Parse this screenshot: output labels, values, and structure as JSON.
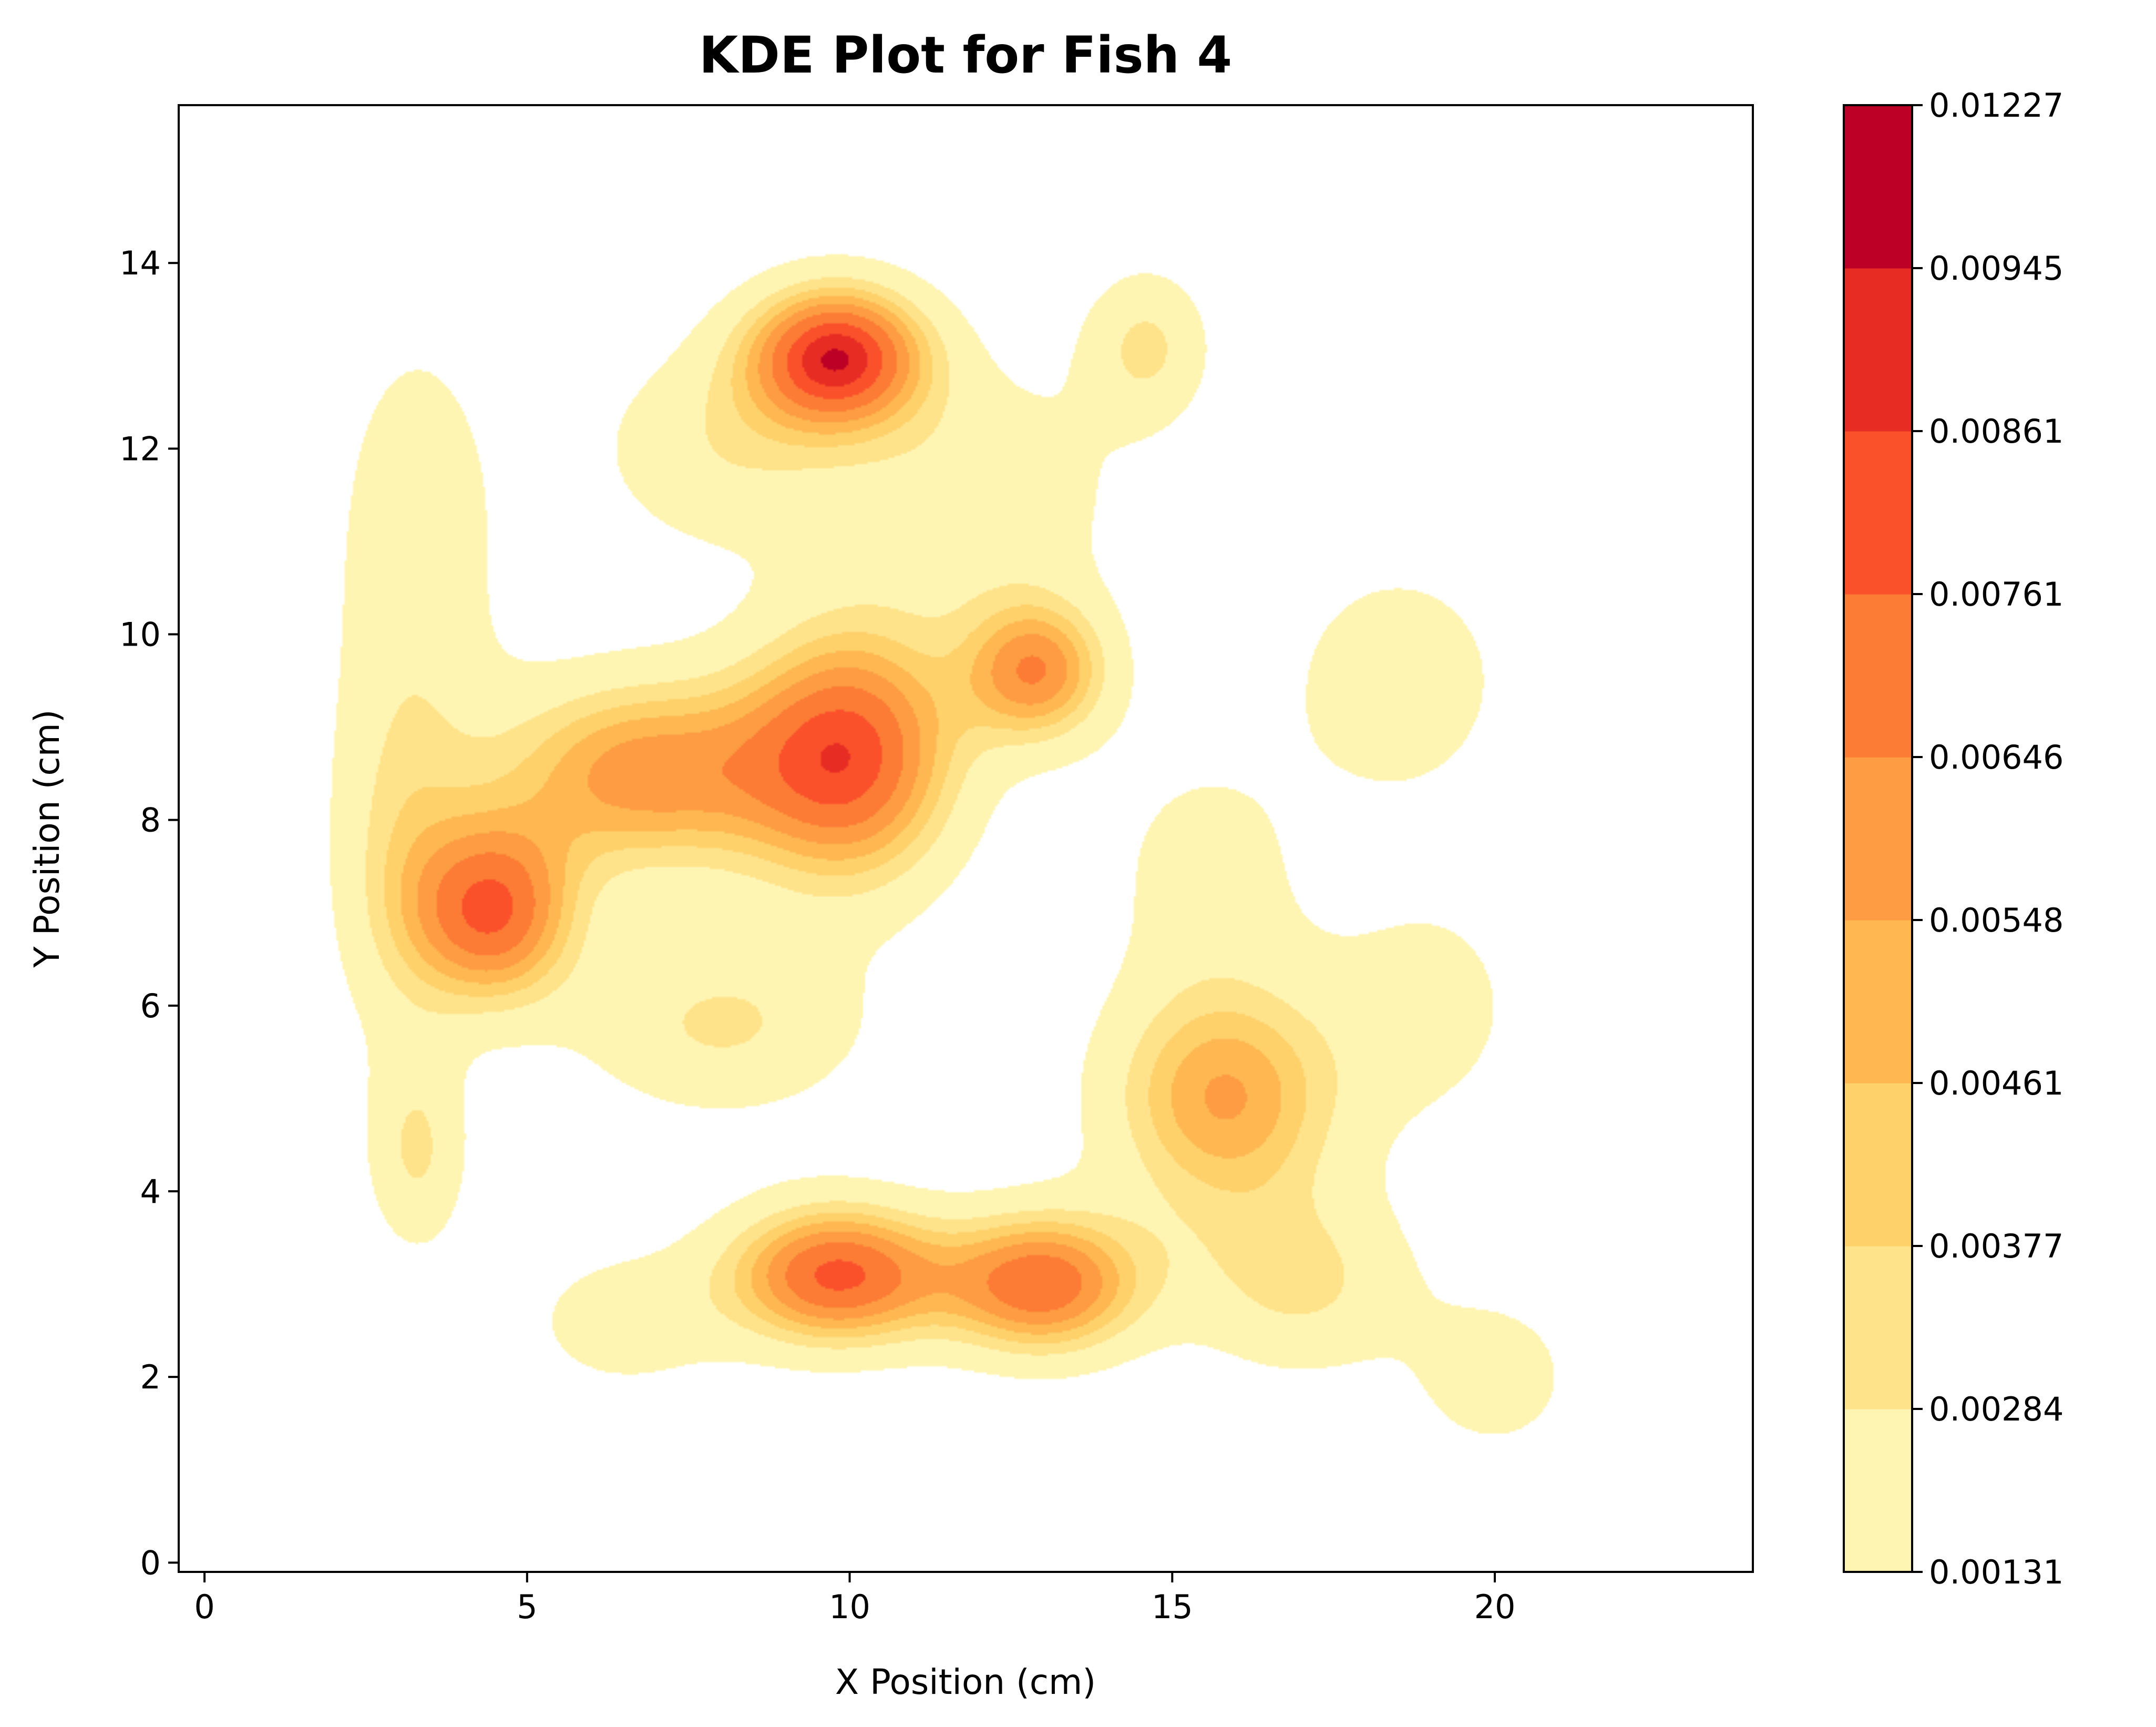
{
  "chart_data": {
    "type": "heatmap",
    "subtype": "filled-contour (KDE)",
    "title": "KDE Plot for Fish 4",
    "xlabel": "X Position (cm)",
    "ylabel": "Y Position (cm)",
    "xlim": [
      -0.4,
      24
    ],
    "ylim": [
      -0.1,
      15.7
    ],
    "x_ticks": [
      0,
      5,
      10,
      15,
      20
    ],
    "y_ticks": [
      0,
      2,
      4,
      6,
      8,
      10,
      12,
      14
    ],
    "grid": false,
    "legend": "none",
    "colormap": "YlOrRd",
    "colorbar": {
      "levels": [
        "0.00131",
        "0.00284",
        "0.00377",
        "0.00461",
        "0.00548",
        "0.00646",
        "0.00761",
        "0.00861",
        "0.00945",
        "0.01227"
      ],
      "colors": [
        "#fff5b3",
        "#ffe38a",
        "#fed16a",
        "#feb751",
        "#fd9c42",
        "#fc7b35",
        "#fa512b",
        "#e72d23",
        "#bd0026"
      ]
    },
    "density_peaks": [
      {
        "x": 9.8,
        "y": 13.0,
        "sx": 1.0,
        "sy": 0.55,
        "w": 0.0088
      },
      {
        "x": 6.8,
        "y": 8.5,
        "sx": 1.6,
        "sy": 0.75,
        "w": 0.006
      },
      {
        "x": 10.0,
        "y": 8.7,
        "sx": 1.2,
        "sy": 1.0,
        "w": 0.0078
      },
      {
        "x": 4.5,
        "y": 7.0,
        "sx": 0.9,
        "sy": 0.7,
        "w": 0.0072
      },
      {
        "x": 12.9,
        "y": 9.6,
        "sx": 0.8,
        "sy": 0.55,
        "w": 0.006
      },
      {
        "x": 9.8,
        "y": 3.1,
        "sx": 1.2,
        "sy": 0.55,
        "w": 0.0078
      },
      {
        "x": 13.0,
        "y": 3.0,
        "sx": 1.1,
        "sy": 0.55,
        "w": 0.0072
      },
      {
        "x": 15.8,
        "y": 5.0,
        "sx": 1.3,
        "sy": 0.9,
        "w": 0.0055
      },
      {
        "x": 17.0,
        "y": 3.0,
        "sx": 1.3,
        "sy": 0.7,
        "w": 0.003
      },
      {
        "x": 14.6,
        "y": 13.1,
        "sx": 0.7,
        "sy": 0.6,
        "w": 0.003
      },
      {
        "x": 3.3,
        "y": 4.4,
        "sx": 0.55,
        "sy": 0.75,
        "w": 0.0028
      },
      {
        "x": 3.3,
        "y": 11.0,
        "sx": 1.0,
        "sy": 1.8,
        "w": 0.0022
      },
      {
        "x": 18.5,
        "y": 9.5,
        "sx": 1.2,
        "sy": 0.9,
        "w": 0.0024
      },
      {
        "x": 19.0,
        "y": 6.0,
        "sx": 1.2,
        "sy": 1.0,
        "w": 0.0018
      },
      {
        "x": 20.0,
        "y": 2.0,
        "sx": 0.9,
        "sy": 0.6,
        "w": 0.0022
      },
      {
        "x": 8.0,
        "y": 12.0,
        "sx": 1.4,
        "sy": 0.8,
        "w": 0.0025
      },
      {
        "x": 12.0,
        "y": 11.5,
        "sx": 1.6,
        "sy": 1.0,
        "w": 0.0024
      },
      {
        "x": 8.0,
        "y": 5.8,
        "sx": 1.6,
        "sy": 0.7,
        "w": 0.003
      },
      {
        "x": 6.5,
        "y": 2.6,
        "sx": 1.2,
        "sy": 0.6,
        "w": 0.002
      },
      {
        "x": 15.5,
        "y": 7.5,
        "sx": 1.2,
        "sy": 1.0,
        "w": 0.0018
      },
      {
        "x": 3.0,
        "y": 7.5,
        "sx": 0.8,
        "sy": 1.5,
        "w": 0.0025
      }
    ]
  }
}
